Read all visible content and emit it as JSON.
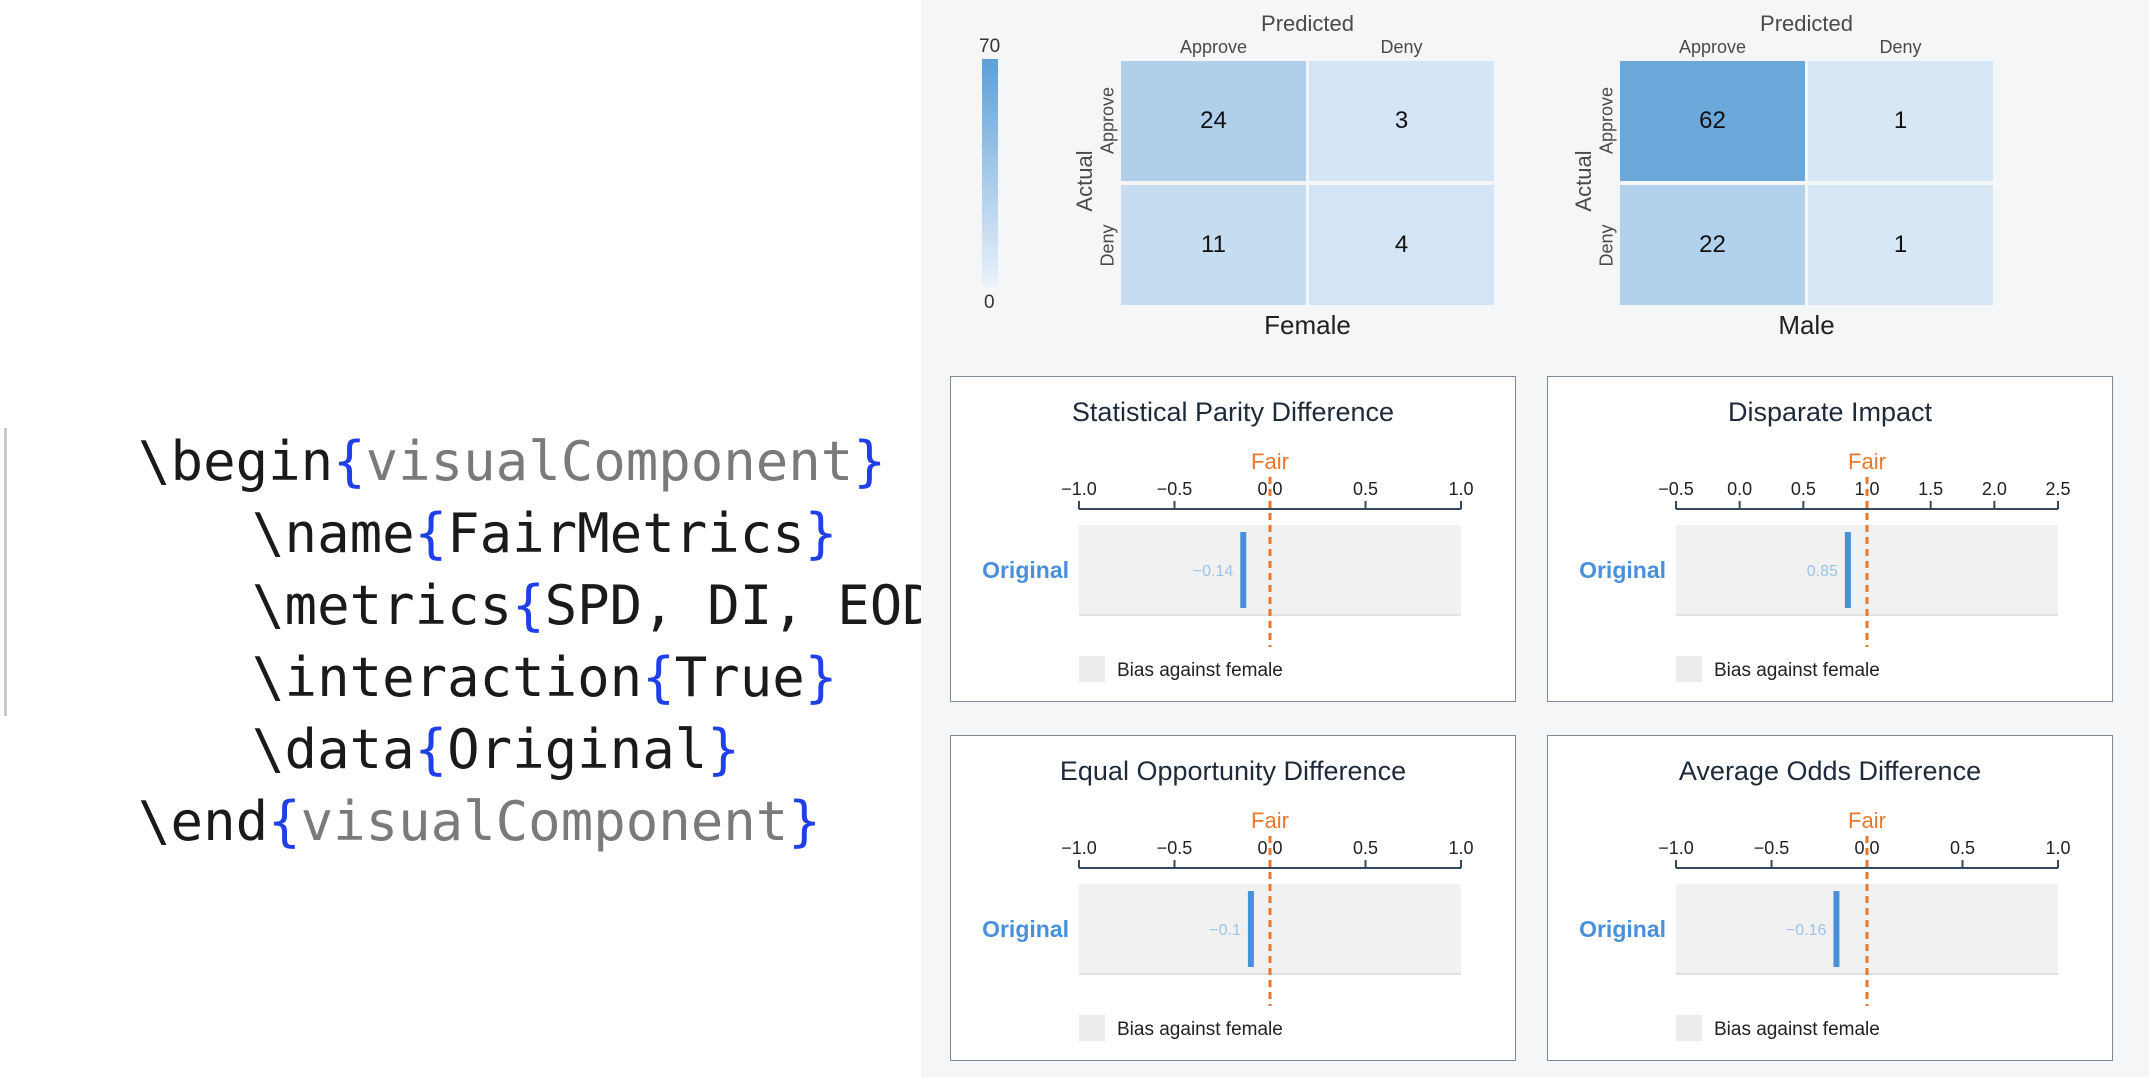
{
  "code": {
    "lines": [
      {
        "cmd": "\\begin",
        "open": "{",
        "arg": "visualComponent",
        "close": "}"
      },
      {
        "cmd": "\\name",
        "open": "{",
        "arg": "FairMetrics",
        "close": "}"
      },
      {
        "cmd": "\\metrics",
        "open": "{",
        "arg": "SPD, DI, EOD, AOD",
        "close": "}"
      },
      {
        "cmd": "\\interaction",
        "open": "{",
        "arg": "True",
        "close": "}"
      },
      {
        "cmd": "\\data",
        "open": "{",
        "arg": "Original",
        "close": "}"
      },
      {
        "cmd": "\\end",
        "open": "{",
        "arg": "visualComponent",
        "close": "}"
      }
    ]
  },
  "confusion": {
    "legend": {
      "max": "70",
      "min": "0"
    },
    "predicted_label": "Predicted",
    "actual_label": "Actual",
    "col_labels": [
      "Approve",
      "Deny"
    ],
    "row_labels": [
      "Approve",
      "Deny"
    ],
    "colors": {
      "low": "#eaf2fb",
      "high": "#5e9fd6"
    },
    "value_max": 70,
    "groups": [
      {
        "name": "Female",
        "cells": [
          [
            24,
            3
          ],
          [
            11,
            4
          ]
        ]
      },
      {
        "name": "Male",
        "cells": [
          [
            62,
            1
          ],
          [
            22,
            1
          ]
        ]
      }
    ]
  },
  "metrics": [
    {
      "title": "Statistical Parity Difference",
      "ticks": [
        "−1.0",
        "−0.5",
        "0.0",
        "0.5",
        "1.0"
      ],
      "domain": [
        -1.0,
        1.0
      ],
      "fair_value": 0.0,
      "fair_label": "Fair",
      "row_label": "Original",
      "value": -0.14,
      "value_label": "−0.14",
      "legend": "Bias against female"
    },
    {
      "title": "Disparate Impact",
      "ticks": [
        "−0.5",
        "0.0",
        "0.5",
        "1.0",
        "1.5",
        "2.0",
        "2.5"
      ],
      "domain": [
        -0.5,
        2.5
      ],
      "fair_value": 1.0,
      "fair_label": "Fair",
      "row_label": "Original",
      "value": 0.85,
      "value_label": "0.85",
      "legend": "Bias against female"
    },
    {
      "title": "Equal Opportunity Difference",
      "ticks": [
        "−1.0",
        "−0.5",
        "0.0",
        "0.5",
        "1.0"
      ],
      "domain": [
        -1.0,
        1.0
      ],
      "fair_value": 0.0,
      "fair_label": "Fair",
      "row_label": "Original",
      "value": -0.1,
      "value_label": "−0.1",
      "legend": "Bias against female"
    },
    {
      "title": "Average Odds Difference",
      "ticks": [
        "−1.0",
        "−0.5",
        "0.0",
        "0.5",
        "1.0"
      ],
      "domain": [
        -1.0,
        1.0
      ],
      "fair_value": 0.0,
      "fair_label": "Fair",
      "row_label": "Original",
      "value": -0.16,
      "value_label": "−0.16",
      "legend": "Bias against female"
    }
  ],
  "colors": {
    "brace": "#1f3fe8",
    "grey_arg": "#7a7a7a",
    "fair": "#e8772e",
    "bar": "#4a90d9"
  }
}
